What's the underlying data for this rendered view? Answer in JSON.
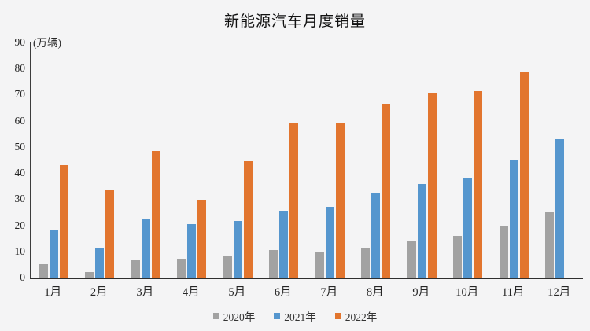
{
  "chart_data": {
    "type": "bar",
    "title": "新能源汽车月度销量",
    "unit_label": "(万辆)",
    "categories": [
      "1月",
      "2月",
      "3月",
      "4月",
      "5月",
      "6月",
      "7月",
      "8月",
      "9月",
      "10月",
      "11月",
      "12月"
    ],
    "series": [
      {
        "name": "2020年",
        "color": "#a2a2a2",
        "values": [
          5,
          2,
          6.6,
          7.2,
          8.2,
          10.4,
          9.8,
          11,
          14,
          16,
          20,
          25
        ]
      },
      {
        "name": "2021年",
        "color": "#5596ce",
        "values": [
          18,
          11,
          22.5,
          20.6,
          21.7,
          25.6,
          27.1,
          32.1,
          35.7,
          38.3,
          45,
          53
        ]
      },
      {
        "name": "2022年",
        "color": "#e2752e",
        "values": [
          43,
          33.3,
          48.4,
          29.8,
          44.6,
          59.2,
          59,
          66.5,
          70.8,
          71.2,
          78.5,
          null
        ]
      }
    ],
    "ylim": [
      0,
      90
    ],
    "ytick_step": 10,
    "yticks": [
      "0",
      "10",
      "20",
      "30",
      "40",
      "50",
      "60",
      "70",
      "80",
      "90"
    ],
    "grid": false,
    "legend_position": "bottom",
    "background_color": "#f4f4f5",
    "axis_color": "#2f2f2f"
  }
}
